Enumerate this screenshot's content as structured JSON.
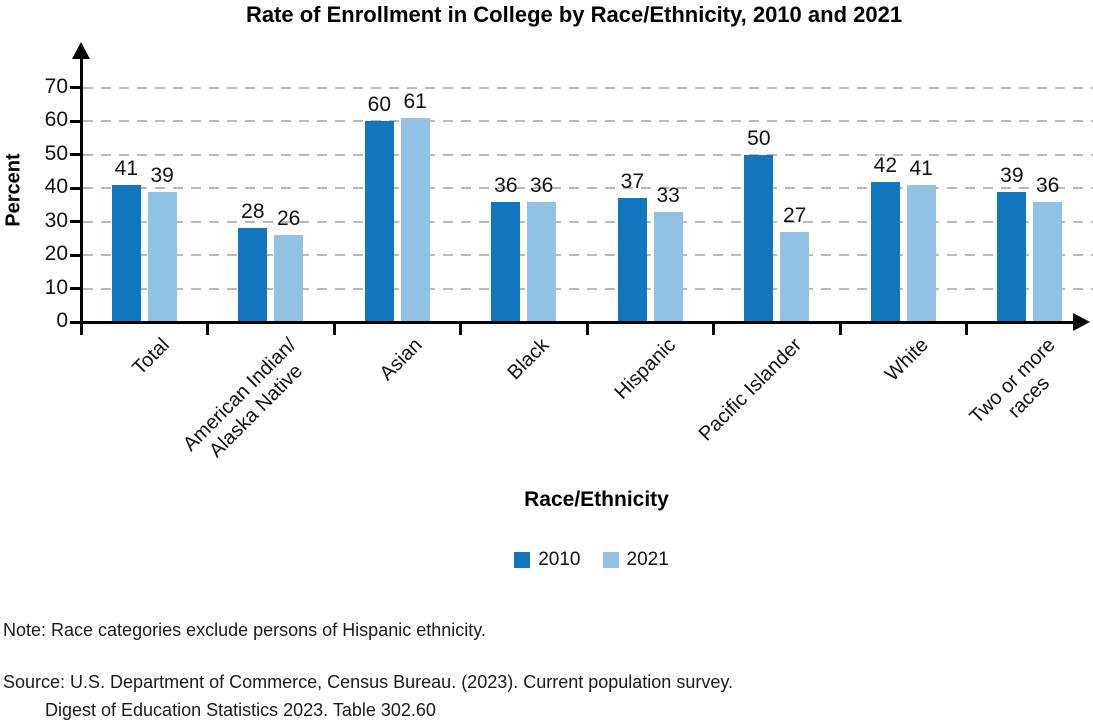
{
  "title": "Rate of Enrollment in College by Race/Ethnicity, 2010 and 2021",
  "chart_data": {
    "type": "bar",
    "title": "Rate of Enrollment in College by Race/Ethnicity, 2010 and 2021",
    "xlabel": "Race/Ethnicity",
    "ylabel": "Percent",
    "ylim": [
      0,
      75
    ],
    "yticks": [
      0,
      10,
      20,
      30,
      40,
      50,
      60,
      70
    ],
    "grid": "horizontal-dashed",
    "legend_position": "bottom-center",
    "categories": [
      "Total",
      "American Indian/\nAlaska Native",
      "Asian",
      "Black",
      "Hispanic",
      "Pacific Islander",
      "White",
      "Two or more\nraces"
    ],
    "series": [
      {
        "name": "2010",
        "color": "#1076BD",
        "values": [
          41,
          28,
          60,
          36,
          37,
          50,
          42,
          39
        ]
      },
      {
        "name": "2021",
        "color": "#92C2E3",
        "values": [
          39,
          26,
          61,
          36,
          33,
          27,
          41,
          36
        ]
      }
    ]
  },
  "note": "Note: Race categories exclude persons of Hispanic ethnicity.",
  "source_line1": "Source: U.S. Department of Commerce, Census Bureau. (2023). Current population survey.",
  "source_line2": "Digest of Education Statistics 2023. Table 302.60"
}
